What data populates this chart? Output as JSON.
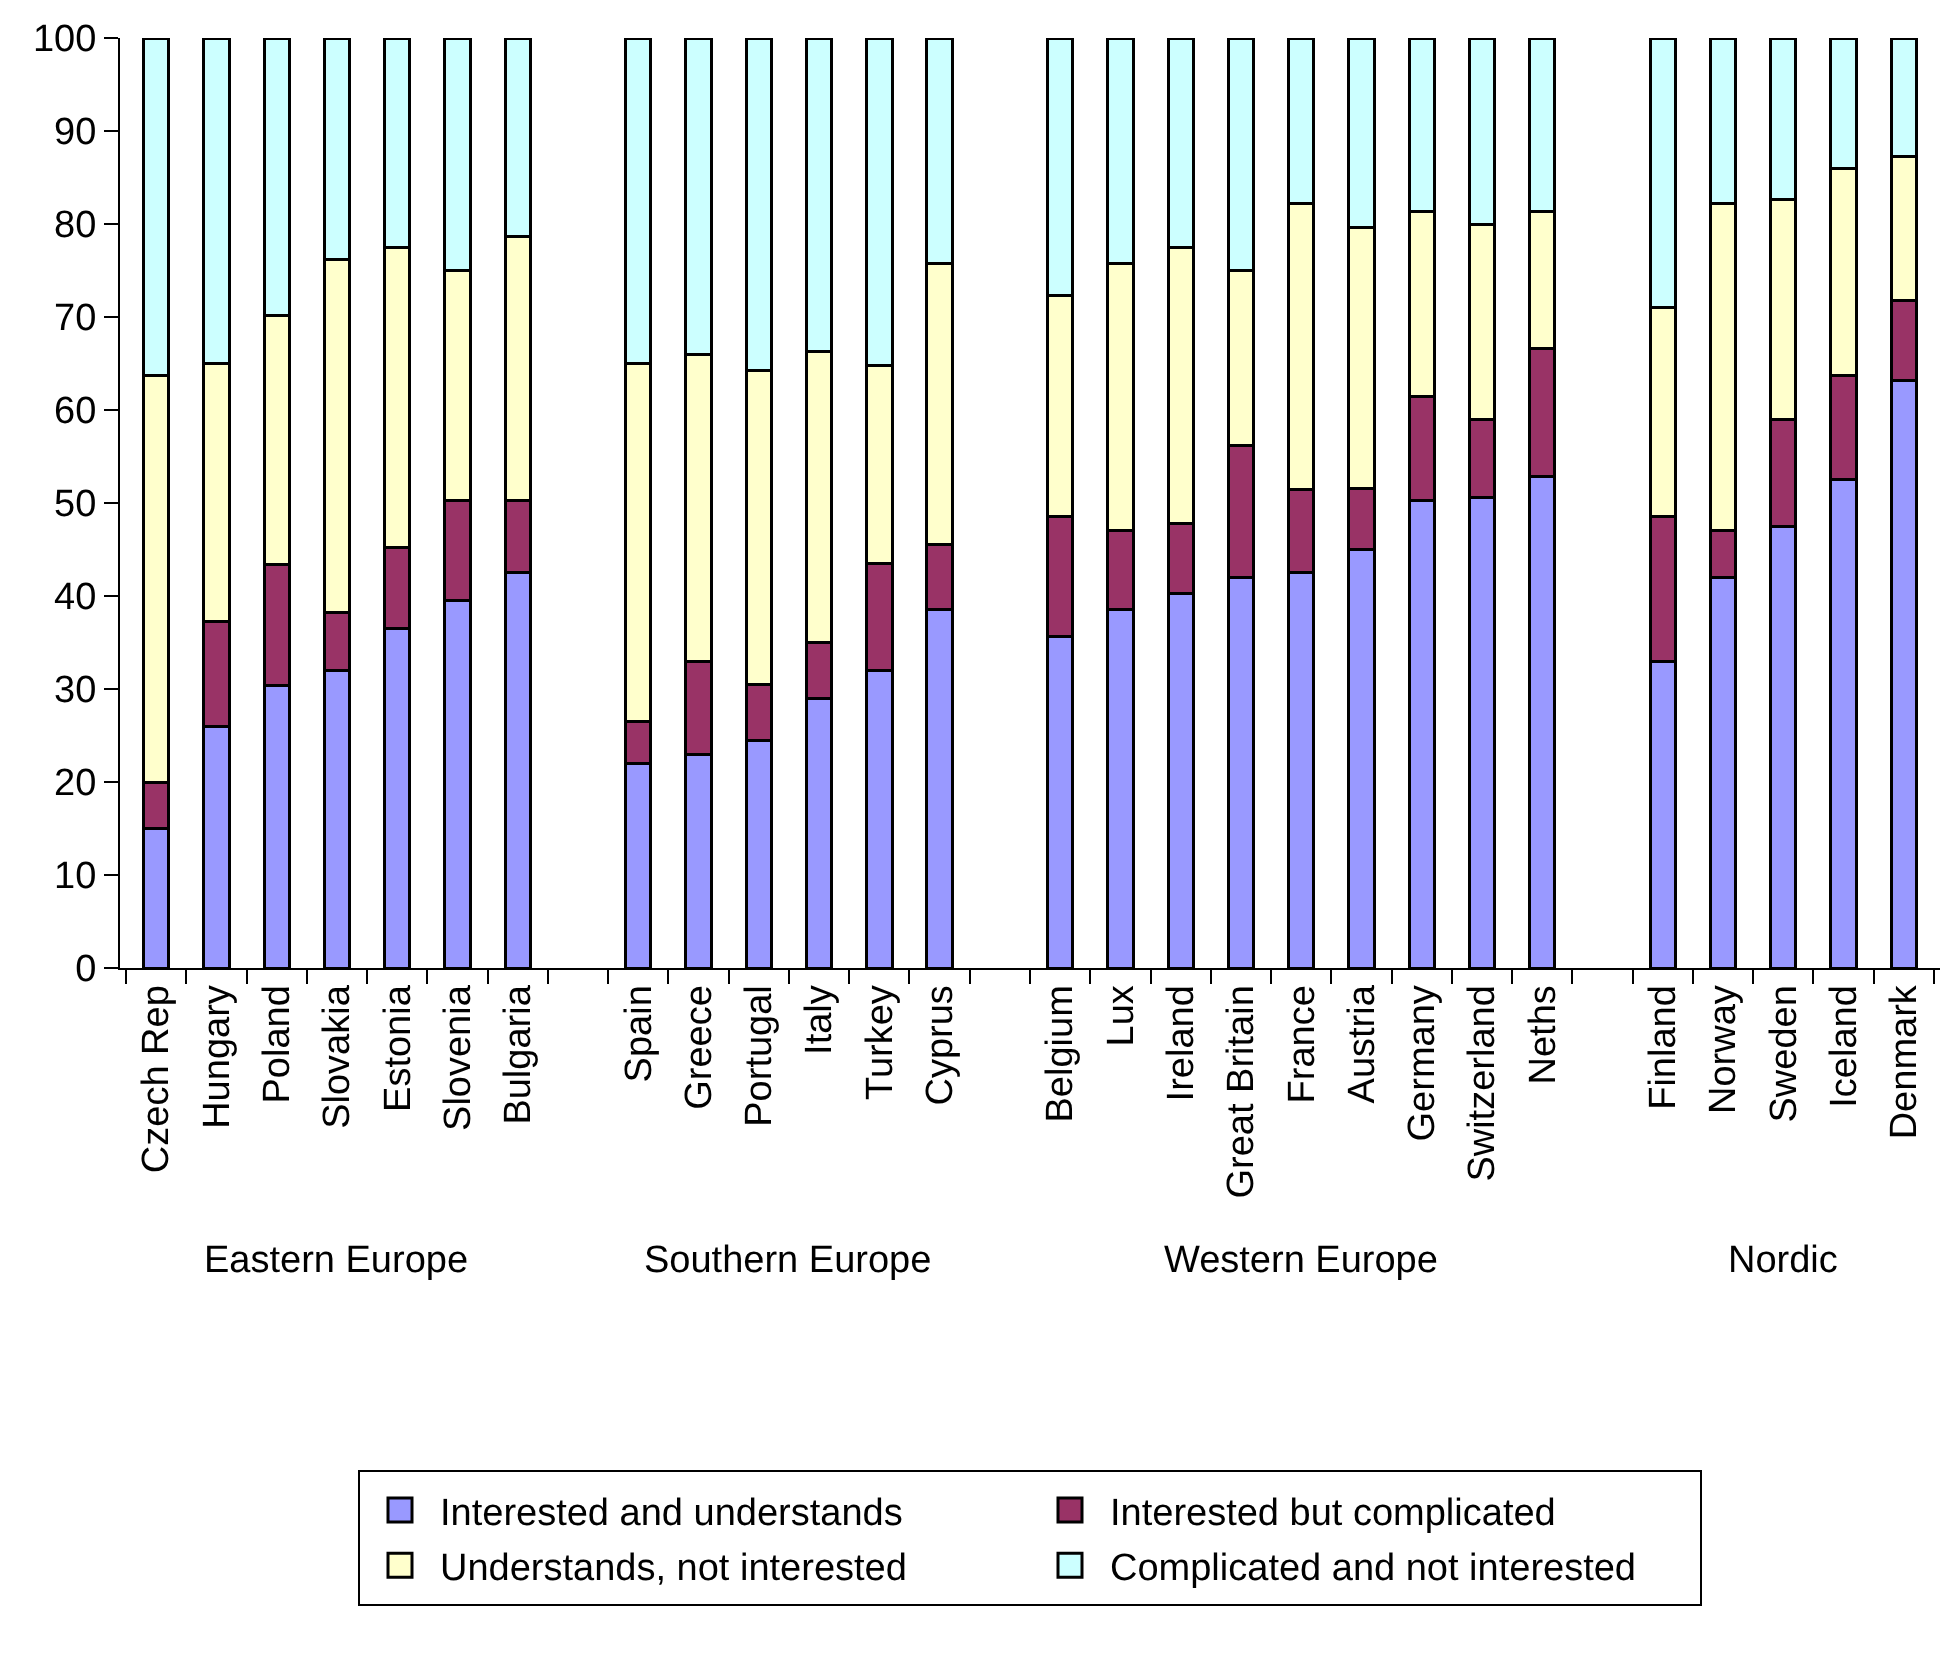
{
  "chart_data": {
    "type": "bar",
    "stacked": true,
    "categories": [
      "Czech Rep",
      "Hungary",
      "Poland",
      "Slovakia",
      "Estonia",
      "Slovenia",
      "Bulgaria",
      null,
      "Spain",
      "Greece",
      "Portugal",
      "Italy",
      "Turkey",
      "Cyprus",
      null,
      "Belgium",
      "Lux",
      "Ireland",
      "Great Britain",
      "France",
      "Austria",
      "Germany",
      "Switzerland",
      "Neths",
      null,
      "Finland",
      "Norway",
      "Sweden",
      "Iceland",
      "Denmark"
    ],
    "series": [
      {
        "name": "Interested and understands",
        "color": "#9999ff",
        "values": [
          15,
          26,
          30.4,
          32,
          36.5,
          39.5,
          42.5,
          null,
          22,
          23,
          24.5,
          29,
          32,
          38.5,
          null,
          35.6,
          38.5,
          40.3,
          42,
          42.5,
          45,
          50.3,
          50.6,
          52.8,
          null,
          33,
          42,
          47.5,
          52.5,
          63.2
        ]
      },
      {
        "name": "Interested but complicated",
        "color": "#993366",
        "values": [
          5,
          11.3,
          13,
          6.2,
          8.7,
          10.8,
          7.8,
          null,
          4.5,
          10,
          6,
          6,
          11.5,
          7,
          null,
          12.9,
          8.5,
          7.5,
          14.2,
          9,
          6.6,
          11.2,
          8.4,
          13.8,
          null,
          15.5,
          5,
          11.5,
          11.2,
          8.6
        ]
      },
      {
        "name": "Understands, not interested",
        "color": "#ffffcc",
        "values": [
          43.7,
          27.7,
          26.8,
          38,
          32.3,
          24.7,
          28.4,
          null,
          38.5,
          33,
          33.8,
          31.3,
          21.3,
          30.3,
          null,
          23.8,
          28.8,
          29.7,
          18.8,
          30.7,
          28,
          19.8,
          21,
          14.7,
          null,
          22.5,
          35.2,
          23.6,
          22.3,
          15.5
        ]
      },
      {
        "name": "Complicated and not interested",
        "color": "#ccffff",
        "values": [
          36.3,
          35,
          29.8,
          23.8,
          22.5,
          25,
          21.3,
          null,
          35,
          34,
          35.7,
          33.7,
          35.2,
          24.2,
          null,
          27.7,
          24.2,
          22.5,
          25,
          17.8,
          20.4,
          18.7,
          20,
          18.7,
          null,
          29,
          17.8,
          17.4,
          14,
          12.7
        ]
      }
    ],
    "annotations": [
      "Eastern Europe",
      "Southern Europe",
      "Western Europe",
      "Nordic"
    ],
    "ylim": [
      0,
      100
    ],
    "yticks": [
      0,
      10,
      20,
      30,
      40,
      50,
      60,
      70,
      80,
      90,
      100
    ],
    "grid": false,
    "legend": "bottom"
  }
}
